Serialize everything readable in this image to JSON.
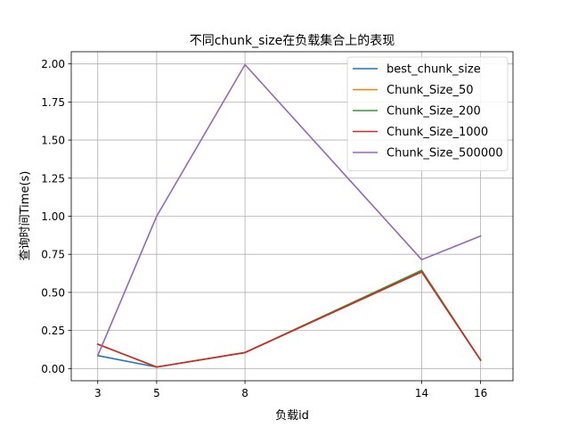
{
  "chart_data": {
    "type": "line",
    "title": "不同chunk_size在负载集合上的表现",
    "xlabel": "负载id",
    "ylabel": "查询时间Time(s)",
    "x": [
      3,
      5,
      8,
      14,
      16
    ],
    "xticks": [
      "3",
      "5",
      "8",
      "14",
      "16"
    ],
    "yticks": [
      "0.00",
      "0.25",
      "0.50",
      "0.75",
      "1.00",
      "1.25",
      "1.50",
      "1.75",
      "2.00"
    ],
    "xlim": [
      2.1,
      17.1
    ],
    "ylim": [
      -0.08,
      2.08
    ],
    "grid": true,
    "legend_position": "top-right",
    "series": [
      {
        "name": "best_chunk_size",
        "color": "#1f77b4",
        "values": [
          0.085,
          0.01,
          0.105,
          0.635,
          0.055
        ]
      },
      {
        "name": "Chunk_Size_50",
        "color": "#ff7f0e",
        "values": [
          0.16,
          0.01,
          0.105,
          0.635,
          0.055
        ]
      },
      {
        "name": "Chunk_Size_200",
        "color": "#2ca02c",
        "values": [
          0.16,
          0.01,
          0.105,
          0.645,
          0.055
        ]
      },
      {
        "name": "Chunk_Size_1000",
        "color": "#d62728",
        "values": [
          0.16,
          0.01,
          0.105,
          0.635,
          0.055
        ]
      },
      {
        "name": "Chunk_Size_500000",
        "color": "#9467bd",
        "values": [
          0.085,
          1.0,
          1.995,
          0.715,
          0.87
        ]
      }
    ]
  }
}
